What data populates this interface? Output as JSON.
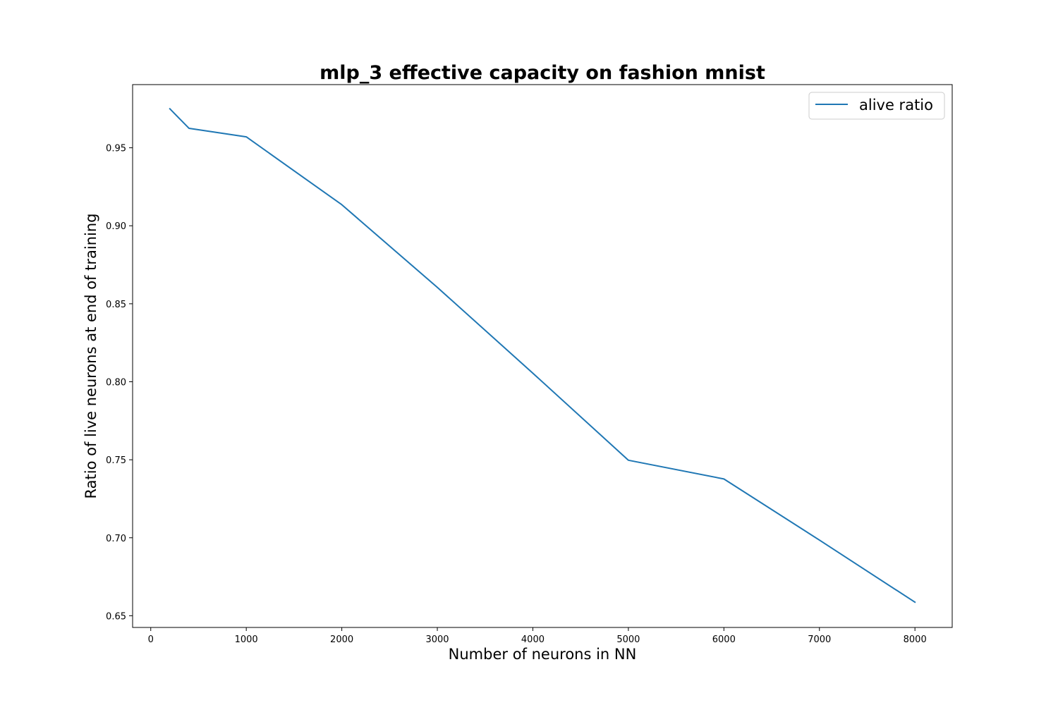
{
  "chart_data": {
    "type": "line",
    "title": "mlp_3 effective capacity on fashion mnist",
    "xlabel": "Number of neurons in NN",
    "ylabel": "Ratio of live neurons at end of training",
    "xlim": [
      -190,
      8390
    ],
    "ylim": [
      0.6425,
      0.9905
    ],
    "xticks": [
      0,
      1000,
      2000,
      3000,
      4000,
      5000,
      6000,
      7000,
      8000
    ],
    "xtick_labels": [
      "0",
      "1000",
      "2000",
      "3000",
      "4000",
      "5000",
      "6000",
      "7000",
      "8000"
    ],
    "yticks": [
      0.65,
      0.7,
      0.75,
      0.8,
      0.85,
      0.9,
      0.95
    ],
    "ytick_labels": [
      "0.65",
      "0.70",
      "0.75",
      "0.80",
      "0.85",
      "0.90",
      "0.95"
    ],
    "grid": false,
    "legend_position": "top-right",
    "series": [
      {
        "name": "alive ratio",
        "color": "#1f77b4",
        "x": [
          200,
          400,
          1000,
          2000,
          3000,
          4000,
          5000,
          6000,
          7000,
          8000
        ],
        "y": [
          0.975,
          0.9625,
          0.957,
          0.9135,
          0.8605,
          0.8055,
          0.7497,
          0.7377,
          0.6985,
          0.6587
        ]
      }
    ]
  }
}
